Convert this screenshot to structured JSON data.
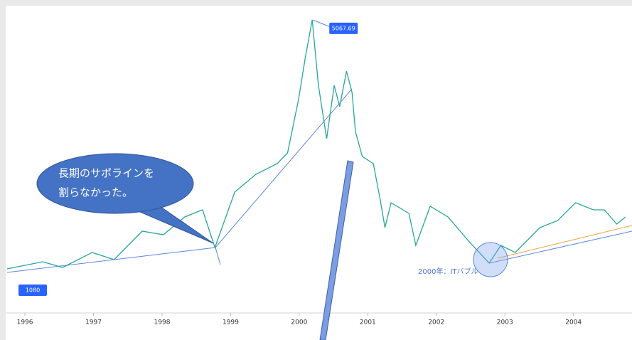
{
  "chart_data": {
    "type": "line",
    "x": [
      1995.74,
      1996.26,
      1996.55,
      1996.98,
      1997.3,
      1997.71,
      1998.02,
      1998.33,
      1998.59,
      1998.77,
      1999.06,
      1999.37,
      1999.68,
      1999.83,
      1999.99,
      2000.09,
      2000.19,
      2000.28,
      2000.4,
      2000.51,
      2000.59,
      2000.69,
      2000.77,
      2000.82,
      2000.92,
      2001.08,
      2001.18,
      2001.25,
      2001.34,
      2001.6,
      2001.7,
      2001.91,
      2002.17,
      2002.48,
      2002.77,
      2002.94,
      2003.15,
      2003.51,
      2003.77,
      2004.03,
      2004.29,
      2004.45,
      2004.63,
      2004.76
    ],
    "values": [
      1080,
      1194,
      1103,
      1342,
      1228,
      1684,
      1627,
      1912,
      2026,
      1422.41,
      2310,
      2595,
      2766,
      2937,
      3791,
      4475,
      5067.69,
      4019,
      3165,
      4019,
      3677,
      4247,
      3905,
      3279,
      2880,
      2766,
      2197,
      1741,
      2140,
      1969,
      1456,
      2083,
      1912,
      1513,
      1171,
      1456,
      1342,
      1741,
      1855,
      2140,
      2026,
      2026,
      1798,
      1912
    ],
    "color": "#26a69a",
    "xlim": [
      1995.74,
      2004.76
    ],
    "xticks": [
      1996,
      1997,
      1998,
      1999,
      2000,
      2001,
      2002,
      2003,
      2004
    ],
    "ylim": [
      374,
      5272
    ],
    "callout": [
      "長期のサポラインを",
      "割らなかった。"
    ],
    "annotation": "2000年：ITバブル"
  }
}
